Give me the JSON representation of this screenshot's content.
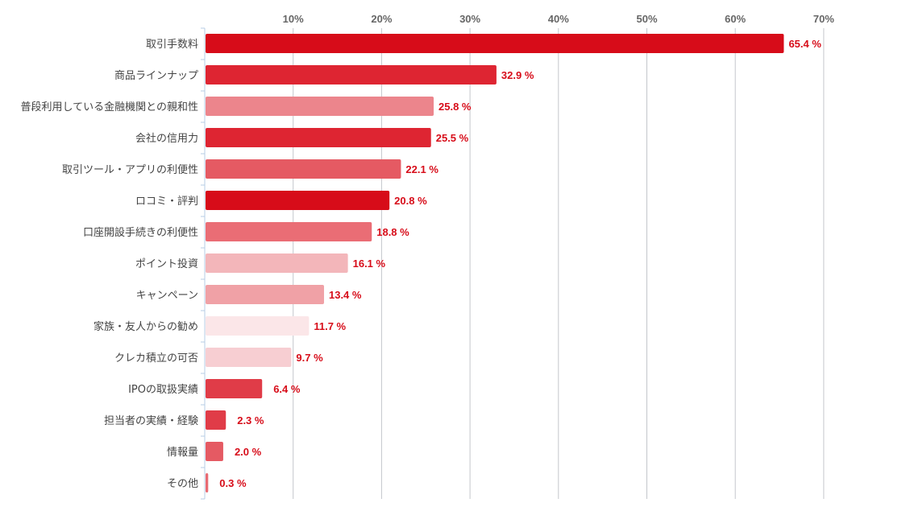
{
  "chart_data": {
    "type": "bar",
    "orientation": "horizontal",
    "title": "",
    "xlabel": "",
    "ylabel": "",
    "xlim": [
      0,
      70
    ],
    "x_ticks": [
      "10%",
      "20%",
      "30%",
      "40%",
      "50%",
      "60%",
      "70%"
    ],
    "x_tick_values": [
      10,
      20,
      30,
      40,
      50,
      60,
      70
    ],
    "grid": true,
    "value_suffix": " %",
    "categories": [
      "取引手数料",
      "商品ラインナップ",
      "普段利用している金融機関との親和性",
      "会社の信用力",
      "取引ツール・アプリの利便性",
      "ロコミ・評判",
      "口座開設手続きの利便性",
      "ポイント投資",
      "キャンペーン",
      "家族・友人からの勧め",
      "クレカ積立の可否",
      "IPOの取扱実績",
      "担当者の実績・経験",
      "情報量",
      "その他"
    ],
    "values": [
      65.4,
      32.9,
      25.8,
      25.5,
      22.1,
      20.8,
      18.8,
      16.1,
      13.4,
      11.7,
      9.7,
      6.4,
      2.3,
      2.0,
      0.3
    ],
    "value_labels": [
      "65.4 %",
      "32.9 %",
      "25.8 %",
      "25.5 %",
      "22.1 %",
      "20.8 %",
      "18.8 %",
      "16.1 %",
      "13.4 %",
      "11.7 %",
      "9.7 %",
      "6.4 %",
      "2.3 %",
      "2.0 %",
      "0.3 %"
    ],
    "colors": [
      "#d70c19",
      "#de2532",
      "#ec858c",
      "#de2532",
      "#e55a63",
      "#d70c19",
      "#ea6d75",
      "#f3b6ba",
      "#f0a1a6",
      "#fbe6e8",
      "#f7ced2",
      "#e03c48",
      "#e03c48",
      "#e55a63",
      "#e86b73"
    ],
    "label_color": "#d70c19"
  }
}
